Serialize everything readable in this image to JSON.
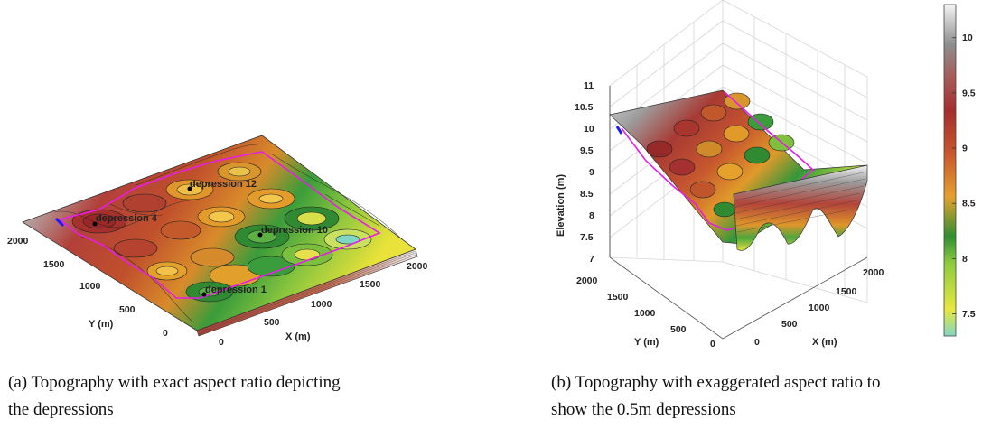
{
  "captions": {
    "a_line1": "(a) Topography with exact aspect ratio depicting",
    "a_line2": "the depressions",
    "b_line1": "(b) Topography with exaggerated aspect ratio to",
    "b_line2": "show the 0.5m depressions"
  },
  "colors": {
    "boundary": "#e61ee6",
    "outlet": "#1a1aff",
    "low": "#7fd6c4",
    "high": "#f2f2f2"
  },
  "chart_data": [
    {
      "type": "surface",
      "xlabel": "X (m)",
      "ylabel": "Y (m)",
      "x_ticks": [
        "0",
        "500",
        "1000",
        "1500",
        "2000"
      ],
      "y_ticks": [
        "0",
        "500",
        "1000",
        "1500",
        "2000"
      ],
      "xlim": [
        0,
        2000
      ],
      "ylim": [
        0,
        2000
      ],
      "annotations": [
        {
          "label": "depression 12",
          "x": 1500,
          "y": 1750
        },
        {
          "label": "depression 4",
          "x": 250,
          "y": 1600
        },
        {
          "label": "depression 10",
          "x": 1500,
          "y": 1100
        },
        {
          "label": "depression 1",
          "x": 1000,
          "y": 400
        }
      ]
    },
    {
      "type": "surface",
      "xlabel": "X (m)",
      "ylabel": "Y (m)",
      "zlabel": "Elevation (m)",
      "x_ticks": [
        "0",
        "500",
        "1000",
        "1500",
        "2000"
      ],
      "y_ticks": [
        "0",
        "500",
        "1000",
        "1500",
        "2000"
      ],
      "z_ticks": [
        "7",
        "7.5",
        "8",
        "8.5",
        "9",
        "9.5",
        "10",
        "10.5",
        "11"
      ],
      "zlim": [
        7,
        11
      ],
      "colorbar_ticks": [
        "7.5",
        "8",
        "8.5",
        "9",
        "9.5",
        "10"
      ],
      "colorbar_range": [
        7.3,
        10.3
      ]
    }
  ]
}
